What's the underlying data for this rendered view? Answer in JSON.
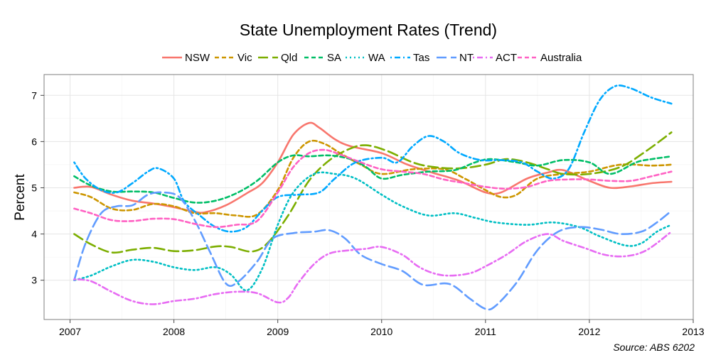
{
  "chart_data": {
    "type": "line",
    "title": "State Unemployment Rates (Trend)",
    "xlabel": "",
    "ylabel": "Percent",
    "source": "Source: ABS 6202",
    "xlim": [
      2006.75,
      2013.0
    ],
    "ylim": [
      2.15,
      7.45
    ],
    "x_ticks": [
      2007,
      2008,
      2009,
      2010,
      2011,
      2012,
      2013
    ],
    "x_tick_labels": [
      "2007",
      "2008",
      "2009",
      "2010",
      "2011",
      "2012",
      "2013"
    ],
    "y_ticks": [
      3,
      4,
      5,
      6,
      7
    ],
    "y_tick_labels": [
      "3",
      "4",
      "5",
      "6",
      "7"
    ],
    "grid": true,
    "legend_position": "top",
    "series": [
      {
        "name": "NSW",
        "color": "#F8766D",
        "dash": "solid",
        "points": [
          [
            2007.04,
            5.0
          ],
          [
            2007.2,
            5.02
          ],
          [
            2007.4,
            4.85
          ],
          [
            2007.6,
            4.72
          ],
          [
            2007.8,
            4.66
          ],
          [
            2008.0,
            4.58
          ],
          [
            2008.2,
            4.48
          ],
          [
            2008.3,
            4.47
          ],
          [
            2008.5,
            4.62
          ],
          [
            2008.7,
            4.88
          ],
          [
            2008.85,
            5.1
          ],
          [
            2009.0,
            5.55
          ],
          [
            2009.15,
            6.15
          ],
          [
            2009.3,
            6.4
          ],
          [
            2009.4,
            6.3
          ],
          [
            2009.55,
            6.05
          ],
          [
            2009.7,
            5.9
          ],
          [
            2010.0,
            5.75
          ],
          [
            2010.25,
            5.5
          ],
          [
            2010.5,
            5.32
          ],
          [
            2010.75,
            5.15
          ],
          [
            2011.0,
            4.9
          ],
          [
            2011.15,
            4.9
          ],
          [
            2011.4,
            5.2
          ],
          [
            2011.6,
            5.33
          ],
          [
            2011.75,
            5.38
          ],
          [
            2012.0,
            5.15
          ],
          [
            2012.2,
            5.0
          ],
          [
            2012.4,
            5.03
          ],
          [
            2012.6,
            5.1
          ],
          [
            2012.79,
            5.13
          ]
        ]
      },
      {
        "name": "Vic",
        "color": "#CD9600",
        "dash": "dashed",
        "points": [
          [
            2007.04,
            4.9
          ],
          [
            2007.2,
            4.8
          ],
          [
            2007.4,
            4.55
          ],
          [
            2007.6,
            4.52
          ],
          [
            2007.8,
            4.65
          ],
          [
            2008.0,
            4.6
          ],
          [
            2008.2,
            4.45
          ],
          [
            2008.4,
            4.45
          ],
          [
            2008.6,
            4.4
          ],
          [
            2008.8,
            4.42
          ],
          [
            2009.0,
            4.95
          ],
          [
            2009.15,
            5.65
          ],
          [
            2009.3,
            6.0
          ],
          [
            2009.45,
            5.95
          ],
          [
            2009.6,
            5.75
          ],
          [
            2009.8,
            5.5
          ],
          [
            2010.0,
            5.3
          ],
          [
            2010.3,
            5.4
          ],
          [
            2010.6,
            5.4
          ],
          [
            2010.8,
            5.2
          ],
          [
            2011.0,
            4.95
          ],
          [
            2011.15,
            4.8
          ],
          [
            2011.3,
            4.85
          ],
          [
            2011.5,
            5.2
          ],
          [
            2011.75,
            5.3
          ],
          [
            2012.0,
            5.35
          ],
          [
            2012.3,
            5.5
          ],
          [
            2012.6,
            5.48
          ],
          [
            2012.79,
            5.5
          ]
        ]
      },
      {
        "name": "Qld",
        "color": "#7CAE00",
        "dash": "longdash",
        "points": [
          [
            2007.04,
            4.0
          ],
          [
            2007.2,
            3.78
          ],
          [
            2007.4,
            3.6
          ],
          [
            2007.6,
            3.66
          ],
          [
            2007.8,
            3.7
          ],
          [
            2008.0,
            3.63
          ],
          [
            2008.2,
            3.65
          ],
          [
            2008.4,
            3.73
          ],
          [
            2008.55,
            3.72
          ],
          [
            2008.75,
            3.62
          ],
          [
            2008.9,
            3.8
          ],
          [
            2009.1,
            4.4
          ],
          [
            2009.3,
            5.15
          ],
          [
            2009.5,
            5.6
          ],
          [
            2009.7,
            5.85
          ],
          [
            2009.85,
            5.92
          ],
          [
            2010.05,
            5.8
          ],
          [
            2010.3,
            5.55
          ],
          [
            2010.5,
            5.45
          ],
          [
            2010.75,
            5.42
          ],
          [
            2011.0,
            5.5
          ],
          [
            2011.2,
            5.62
          ],
          [
            2011.4,
            5.55
          ],
          [
            2011.6,
            5.4
          ],
          [
            2011.75,
            5.3
          ],
          [
            2012.0,
            5.3
          ],
          [
            2012.3,
            5.45
          ],
          [
            2012.55,
            5.8
          ],
          [
            2012.79,
            6.2
          ]
        ]
      },
      {
        "name": "SA",
        "color": "#00BE67",
        "dash": "dashed",
        "points": [
          [
            2007.04,
            5.25
          ],
          [
            2007.2,
            5.05
          ],
          [
            2007.4,
            4.92
          ],
          [
            2007.6,
            4.92
          ],
          [
            2007.8,
            4.9
          ],
          [
            2008.0,
            4.78
          ],
          [
            2008.2,
            4.68
          ],
          [
            2008.4,
            4.72
          ],
          [
            2008.6,
            4.88
          ],
          [
            2008.8,
            5.15
          ],
          [
            2009.0,
            5.55
          ],
          [
            2009.15,
            5.7
          ],
          [
            2009.3,
            5.68
          ],
          [
            2009.5,
            5.7
          ],
          [
            2009.7,
            5.62
          ],
          [
            2009.85,
            5.45
          ],
          [
            2010.0,
            5.2
          ],
          [
            2010.2,
            5.28
          ],
          [
            2010.45,
            5.35
          ],
          [
            2010.7,
            5.38
          ],
          [
            2010.9,
            5.55
          ],
          [
            2011.05,
            5.62
          ],
          [
            2011.3,
            5.55
          ],
          [
            2011.5,
            5.48
          ],
          [
            2011.75,
            5.6
          ],
          [
            2012.0,
            5.55
          ],
          [
            2012.2,
            5.3
          ],
          [
            2012.45,
            5.55
          ],
          [
            2012.6,
            5.62
          ],
          [
            2012.79,
            5.68
          ]
        ]
      },
      {
        "name": "WA",
        "color": "#00BFC4",
        "dash": "dotted",
        "points": [
          [
            2007.04,
            3.0
          ],
          [
            2007.2,
            3.1
          ],
          [
            2007.4,
            3.3
          ],
          [
            2007.6,
            3.44
          ],
          [
            2007.8,
            3.4
          ],
          [
            2008.0,
            3.28
          ],
          [
            2008.2,
            3.22
          ],
          [
            2008.4,
            3.28
          ],
          [
            2008.55,
            3.12
          ],
          [
            2008.7,
            2.78
          ],
          [
            2008.85,
            3.25
          ],
          [
            2009.0,
            4.2
          ],
          [
            2009.15,
            4.9
          ],
          [
            2009.35,
            5.3
          ],
          [
            2009.55,
            5.3
          ],
          [
            2009.75,
            5.2
          ],
          [
            2010.0,
            4.85
          ],
          [
            2010.2,
            4.6
          ],
          [
            2010.45,
            4.4
          ],
          [
            2010.7,
            4.45
          ],
          [
            2010.9,
            4.35
          ],
          [
            2011.1,
            4.25
          ],
          [
            2011.4,
            4.2
          ],
          [
            2011.65,
            4.25
          ],
          [
            2011.9,
            4.15
          ],
          [
            2012.1,
            3.95
          ],
          [
            2012.35,
            3.75
          ],
          [
            2012.5,
            3.8
          ],
          [
            2012.65,
            4.05
          ],
          [
            2012.79,
            4.2
          ]
        ]
      },
      {
        "name": "Tas",
        "color": "#00A9FF",
        "dash": "dotdash",
        "points": [
          [
            2007.04,
            5.55
          ],
          [
            2007.15,
            5.2
          ],
          [
            2007.3,
            4.95
          ],
          [
            2007.45,
            4.9
          ],
          [
            2007.6,
            5.1
          ],
          [
            2007.75,
            5.35
          ],
          [
            2007.85,
            5.42
          ],
          [
            2008.0,
            5.2
          ],
          [
            2008.1,
            4.7
          ],
          [
            2008.25,
            4.4
          ],
          [
            2008.4,
            4.15
          ],
          [
            2008.55,
            4.05
          ],
          [
            2008.7,
            4.15
          ],
          [
            2008.85,
            4.5
          ],
          [
            2009.0,
            4.8
          ],
          [
            2009.2,
            4.85
          ],
          [
            2009.4,
            4.9
          ],
          [
            2009.55,
            5.2
          ],
          [
            2009.75,
            5.55
          ],
          [
            2010.0,
            5.65
          ],
          [
            2010.15,
            5.55
          ],
          [
            2010.3,
            5.9
          ],
          [
            2010.45,
            6.12
          ],
          [
            2010.6,
            6.0
          ],
          [
            2010.75,
            5.75
          ],
          [
            2010.95,
            5.6
          ],
          [
            2011.15,
            5.6
          ],
          [
            2011.35,
            5.55
          ],
          [
            2011.5,
            5.35
          ],
          [
            2011.65,
            5.2
          ],
          [
            2011.8,
            5.4
          ],
          [
            2011.95,
            6.2
          ],
          [
            2012.1,
            6.9
          ],
          [
            2012.25,
            7.2
          ],
          [
            2012.4,
            7.15
          ],
          [
            2012.6,
            6.95
          ],
          [
            2012.79,
            6.82
          ]
        ]
      },
      {
        "name": "NT",
        "color": "#619CFF",
        "dash": "longdash",
        "points": [
          [
            2007.04,
            3.0
          ],
          [
            2007.15,
            3.8
          ],
          [
            2007.3,
            4.45
          ],
          [
            2007.45,
            4.6
          ],
          [
            2007.6,
            4.62
          ],
          [
            2007.75,
            4.85
          ],
          [
            2007.9,
            4.9
          ],
          [
            2008.05,
            4.8
          ],
          [
            2008.2,
            4.3
          ],
          [
            2008.35,
            3.6
          ],
          [
            2008.5,
            2.93
          ],
          [
            2008.62,
            2.97
          ],
          [
            2008.8,
            3.4
          ],
          [
            2008.95,
            3.9
          ],
          [
            2009.15,
            4.02
          ],
          [
            2009.35,
            4.05
          ],
          [
            2009.5,
            4.08
          ],
          [
            2009.65,
            3.9
          ],
          [
            2009.8,
            3.55
          ],
          [
            2010.0,
            3.35
          ],
          [
            2010.2,
            3.2
          ],
          [
            2010.4,
            2.9
          ],
          [
            2010.65,
            2.92
          ],
          [
            2010.85,
            2.6
          ],
          [
            2011.0,
            2.38
          ],
          [
            2011.1,
            2.45
          ],
          [
            2011.3,
            2.95
          ],
          [
            2011.5,
            3.65
          ],
          [
            2011.7,
            4.05
          ],
          [
            2011.9,
            4.15
          ],
          [
            2012.1,
            4.1
          ],
          [
            2012.3,
            4.0
          ],
          [
            2012.5,
            4.05
          ],
          [
            2012.65,
            4.25
          ],
          [
            2012.79,
            4.5
          ]
        ]
      },
      {
        "name": "ACT",
        "color": "#E76BF3",
        "dash": "dotdash",
        "points": [
          [
            2007.04,
            3.02
          ],
          [
            2007.2,
            2.98
          ],
          [
            2007.4,
            2.75
          ],
          [
            2007.6,
            2.55
          ],
          [
            2007.8,
            2.48
          ],
          [
            2008.0,
            2.55
          ],
          [
            2008.2,
            2.6
          ],
          [
            2008.4,
            2.7
          ],
          [
            2008.6,
            2.75
          ],
          [
            2008.8,
            2.72
          ],
          [
            2009.0,
            2.52
          ],
          [
            2009.1,
            2.62
          ],
          [
            2009.2,
            2.95
          ],
          [
            2009.35,
            3.35
          ],
          [
            2009.5,
            3.58
          ],
          [
            2009.7,
            3.65
          ],
          [
            2009.85,
            3.68
          ],
          [
            2010.0,
            3.72
          ],
          [
            2010.2,
            3.55
          ],
          [
            2010.35,
            3.3
          ],
          [
            2010.5,
            3.15
          ],
          [
            2010.65,
            3.1
          ],
          [
            2010.85,
            3.15
          ],
          [
            2011.0,
            3.3
          ],
          [
            2011.2,
            3.55
          ],
          [
            2011.4,
            3.85
          ],
          [
            2011.6,
            4.0
          ],
          [
            2011.75,
            3.85
          ],
          [
            2011.95,
            3.7
          ],
          [
            2012.15,
            3.55
          ],
          [
            2012.35,
            3.52
          ],
          [
            2012.55,
            3.65
          ],
          [
            2012.79,
            4.05
          ]
        ]
      },
      {
        "name": "Australia",
        "color": "#FF61C3",
        "dash": "dashed",
        "points": [
          [
            2007.04,
            4.55
          ],
          [
            2007.2,
            4.45
          ],
          [
            2007.4,
            4.3
          ],
          [
            2007.6,
            4.28
          ],
          [
            2007.8,
            4.33
          ],
          [
            2008.0,
            4.32
          ],
          [
            2008.2,
            4.22
          ],
          [
            2008.4,
            4.15
          ],
          [
            2008.6,
            4.2
          ],
          [
            2008.8,
            4.28
          ],
          [
            2009.0,
            4.9
          ],
          [
            2009.15,
            5.45
          ],
          [
            2009.3,
            5.75
          ],
          [
            2009.45,
            5.82
          ],
          [
            2009.6,
            5.72
          ],
          [
            2009.8,
            5.55
          ],
          [
            2010.0,
            5.4
          ],
          [
            2010.2,
            5.35
          ],
          [
            2010.4,
            5.3
          ],
          [
            2010.6,
            5.18
          ],
          [
            2010.8,
            5.1
          ],
          [
            2011.0,
            5.02
          ],
          [
            2011.2,
            4.98
          ],
          [
            2011.4,
            5.02
          ],
          [
            2011.6,
            5.15
          ],
          [
            2011.8,
            5.18
          ],
          [
            2012.0,
            5.18
          ],
          [
            2012.2,
            5.15
          ],
          [
            2012.4,
            5.15
          ],
          [
            2012.6,
            5.25
          ],
          [
            2012.79,
            5.35
          ]
        ]
      }
    ]
  }
}
